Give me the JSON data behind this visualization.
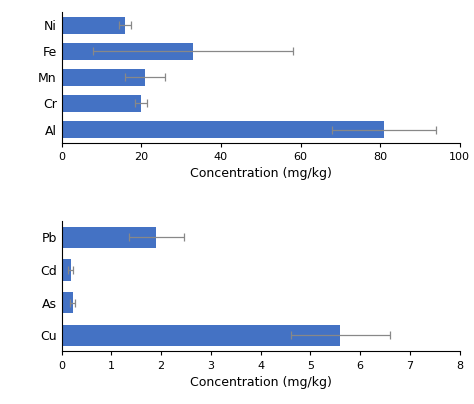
{
  "chart1": {
    "labels": [
      "Ni",
      "Fe",
      "Mn",
      "Cr",
      "Al"
    ],
    "values": [
      16,
      33,
      21,
      20,
      81
    ],
    "errors": [
      1.5,
      25,
      5,
      1.5,
      13
    ],
    "xlim": [
      0,
      100
    ],
    "xticks": [
      0,
      20,
      40,
      60,
      80,
      100
    ],
    "xlabel": "Concentration (mg/kg)"
  },
  "chart2": {
    "labels": [
      "Pb",
      "Cd",
      "As",
      "Cu"
    ],
    "values": [
      1.9,
      0.18,
      0.22,
      5.6
    ],
    "errors": [
      0.55,
      0.05,
      0.05,
      1.0
    ],
    "xlim": [
      0,
      8
    ],
    "xticks": [
      0,
      1,
      2,
      3,
      4,
      5,
      6,
      7,
      8
    ],
    "xlabel": "Concentration (mg/kg)"
  },
  "bar_color": "#4472C4",
  "bar_height": 0.65,
  "error_color": "#888888",
  "capsize": 3
}
